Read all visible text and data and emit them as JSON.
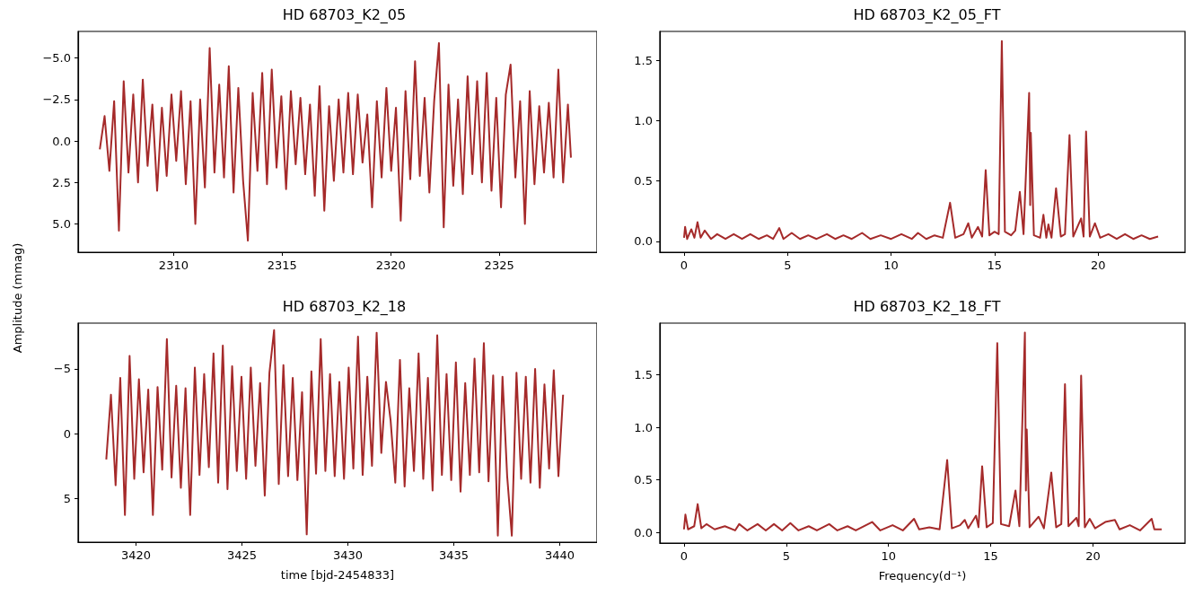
{
  "chart_data": [
    {
      "type": "line",
      "title": "HD 68703_K2_05",
      "ylabel": "Amplitude (mmag)",
      "marker": "none",
      "line_style": "solid",
      "xlim": [
        2305.6,
        2329.5
      ],
      "xticks": [
        2310,
        2315,
        2320,
        2325
      ],
      "ylim": [
        6.7,
        -6.6
      ],
      "yticks": [
        {
          "value": -5,
          "label": "−5.0"
        },
        {
          "value": -2.5,
          "label": "−2.5"
        },
        {
          "value": 0,
          "label": "0.0"
        },
        {
          "value": 2.5,
          "label": "2.5"
        },
        {
          "value": 5,
          "label": "5.0"
        }
      ],
      "series": [
        {
          "color": "#a52a2a",
          "x": [
            2306.6,
            2306.82,
            2307.04,
            2307.26,
            2307.48,
            2307.7,
            2307.92,
            2308.14,
            2308.36,
            2308.58,
            2308.8,
            2309.02,
            2309.24,
            2309.46,
            2309.68,
            2309.9,
            2310.12,
            2310.34,
            2310.56,
            2310.78,
            2311,
            2311.22,
            2311.44,
            2311.66,
            2311.88,
            2312.1,
            2312.32,
            2312.54,
            2312.76,
            2312.98,
            2313.2,
            2313.42,
            2313.64,
            2313.86,
            2314.08,
            2314.3,
            2314.52,
            2314.74,
            2314.96,
            2315.18,
            2315.4,
            2315.62,
            2315.84,
            2316.06,
            2316.28,
            2316.5,
            2316.72,
            2316.94,
            2317.16,
            2317.38,
            2317.6,
            2317.82,
            2318.04,
            2318.26,
            2318.48,
            2318.7,
            2318.92,
            2319.14,
            2319.36,
            2319.58,
            2319.8,
            2320.02,
            2320.24,
            2320.46,
            2320.68,
            2320.9,
            2321.12,
            2321.34,
            2321.56,
            2321.78,
            2322,
            2322.22,
            2322.44,
            2322.66,
            2322.88,
            2323.1,
            2323.32,
            2323.54,
            2323.76,
            2323.98,
            2324.2,
            2324.42,
            2324.64,
            2324.86,
            2325.08,
            2325.3,
            2325.52,
            2325.74,
            2325.96,
            2326.18,
            2326.4,
            2326.62,
            2326.84,
            2327.06,
            2327.28,
            2327.5,
            2327.72,
            2327.94,
            2328.16,
            2328.3
          ],
          "values": [
            0.5,
            -1.5,
            1.8,
            -2.4,
            5.4,
            -3.6,
            1.9,
            -2.8,
            2.5,
            -3.7,
            1.5,
            -2.2,
            3.0,
            -2.0,
            2.1,
            -2.8,
            1.2,
            -3.0,
            2.6,
            -2.4,
            5.0,
            -2.5,
            2.8,
            -5.6,
            1.9,
            -3.4,
            2.2,
            -4.5,
            3.1,
            -3.2,
            2.4,
            6.0,
            -2.9,
            1.8,
            -4.1,
            2.6,
            -4.3,
            1.6,
            -2.7,
            2.9,
            -3.0,
            1.4,
            -2.6,
            2.0,
            -2.2,
            3.3,
            -3.3,
            4.2,
            -2.1,
            2.4,
            -2.5,
            1.9,
            -2.9,
            2.0,
            -2.8,
            1.3,
            -1.6,
            4.0,
            -2.4,
            2.2,
            -3.2,
            1.8,
            -2.0,
            4.8,
            -3.0,
            2.3,
            -4.8,
            2.1,
            -2.6,
            3.1,
            -2.4,
            -5.9,
            5.2,
            -3.4,
            2.7,
            -2.5,
            3.2,
            -3.9,
            2.0,
            -3.6,
            2.5,
            -4.1,
            3.0,
            -2.6,
            4.0,
            -2.8,
            -4.6,
            2.2,
            -2.4,
            5.0,
            -3.0,
            2.6,
            -2.1,
            1.9,
            -2.3,
            2.2,
            -4.3,
            2.5,
            -2.2,
            1.0
          ]
        }
      ]
    },
    {
      "type": "line",
      "title": "HD 68703_K2_05_FT",
      "marker": "none",
      "line_style": "solid",
      "xlim": [
        -1.17,
        24.2
      ],
      "xticks": [
        0,
        5,
        10,
        15,
        20
      ],
      "ylim": [
        -0.09,
        1.74
      ],
      "yticks": [
        {
          "value": 0,
          "label": "0.0"
        },
        {
          "value": 0.5,
          "label": "0.5"
        },
        {
          "value": 1,
          "label": "1.0"
        },
        {
          "value": 1.5,
          "label": "1.5"
        }
      ],
      "series": [
        {
          "color": "#a52a2a",
          "x": [
            0,
            0.05,
            0.15,
            0.35,
            0.5,
            0.65,
            0.8,
            1.0,
            1.3,
            1.6,
            2.0,
            2.4,
            2.8,
            3.2,
            3.6,
            4.0,
            4.3,
            4.6,
            4.8,
            5.2,
            5.6,
            6.0,
            6.4,
            6.9,
            7.3,
            7.7,
            8.1,
            8.6,
            9.0,
            9.5,
            10.0,
            10.5,
            11.0,
            11.3,
            11.7,
            12.1,
            12.5,
            12.85,
            13.1,
            13.5,
            13.73,
            13.9,
            14.2,
            14.4,
            14.57,
            14.75,
            15.0,
            15.2,
            15.35,
            15.5,
            15.8,
            16.0,
            16.22,
            16.4,
            16.67,
            16.72,
            16.75,
            16.9,
            17.2,
            17.36,
            17.5,
            17.6,
            17.75,
            17.97,
            18.2,
            18.4,
            18.62,
            18.8,
            19.18,
            19.3,
            19.42,
            19.6,
            19.85,
            20.1,
            20.5,
            20.9,
            21.3,
            21.7,
            22.1,
            22.5,
            22.9
          ],
          "values": [
            0.03,
            0.12,
            0.02,
            0.1,
            0.03,
            0.16,
            0.03,
            0.09,
            0.02,
            0.06,
            0.02,
            0.06,
            0.02,
            0.06,
            0.02,
            0.05,
            0.02,
            0.11,
            0.02,
            0.07,
            0.02,
            0.05,
            0.02,
            0.06,
            0.02,
            0.05,
            0.02,
            0.07,
            0.02,
            0.05,
            0.02,
            0.06,
            0.02,
            0.07,
            0.02,
            0.05,
            0.03,
            0.32,
            0.03,
            0.06,
            0.15,
            0.03,
            0.12,
            0.04,
            0.59,
            0.05,
            0.08,
            0.06,
            1.66,
            0.08,
            0.05,
            0.09,
            0.41,
            0.06,
            1.23,
            0.3,
            0.9,
            0.05,
            0.03,
            0.22,
            0.03,
            0.14,
            0.03,
            0.44,
            0.04,
            0.06,
            0.88,
            0.04,
            0.19,
            0.04,
            0.91,
            0.04,
            0.15,
            0.03,
            0.06,
            0.02,
            0.06,
            0.02,
            0.05,
            0.02,
            0.04
          ]
        }
      ]
    },
    {
      "type": "line",
      "title": "HD 68703_K2_18",
      "xlabel": "time [bjd-2454833]",
      "marker": "none",
      "line_style": "solid",
      "xlim": [
        3417.27,
        3441.76
      ],
      "xticks": [
        3420,
        3425,
        3430,
        3435,
        3440
      ],
      "ylim": [
        8.4,
        -8.54
      ],
      "yticks": [
        {
          "value": -5,
          "label": "−5"
        },
        0,
        5
      ],
      "series": [
        {
          "color": "#a52a2a",
          "x": [
            3418.6,
            3418.82,
            3419.04,
            3419.26,
            3419.48,
            3419.7,
            3419.92,
            3420.14,
            3420.36,
            3420.58,
            3420.8,
            3421.02,
            3421.24,
            3421.46,
            3421.68,
            3421.9,
            3422.12,
            3422.34,
            3422.56,
            3422.78,
            3423,
            3423.22,
            3423.44,
            3423.66,
            3423.88,
            3424.1,
            3424.32,
            3424.54,
            3424.76,
            3424.98,
            3425.2,
            3425.42,
            3425.64,
            3425.86,
            3426.08,
            3426.3,
            3426.52,
            3426.74,
            3426.96,
            3427.18,
            3427.4,
            3427.62,
            3427.84,
            3428.06,
            3428.28,
            3428.5,
            3428.72,
            3428.94,
            3429.16,
            3429.38,
            3429.6,
            3429.82,
            3430.04,
            3430.26,
            3430.48,
            3430.7,
            3430.92,
            3431.14,
            3431.36,
            3431.58,
            3431.8,
            3432.02,
            3432.24,
            3432.46,
            3432.68,
            3432.9,
            3433.12,
            3433.34,
            3433.56,
            3433.78,
            3434,
            3434.22,
            3434.44,
            3434.66,
            3434.88,
            3435.1,
            3435.32,
            3435.54,
            3435.76,
            3435.98,
            3436.2,
            3436.42,
            3436.64,
            3436.86,
            3437.08,
            3437.3,
            3437.52,
            3437.74,
            3437.96,
            3438.18,
            3438.4,
            3438.62,
            3438.84,
            3439.06,
            3439.28,
            3439.5,
            3439.72,
            3439.94,
            3440.16
          ],
          "values": [
            2.0,
            -3.0,
            4.0,
            -4.3,
            6.3,
            -6.0,
            3.5,
            -4.2,
            3.0,
            -3.4,
            6.3,
            -3.6,
            2.8,
            -7.3,
            3.4,
            -3.7,
            4.2,
            -3.5,
            6.3,
            -5.1,
            3.2,
            -4.6,
            2.6,
            -6.2,
            3.8,
            -6.8,
            4.3,
            -5.2,
            2.9,
            -4.4,
            3.5,
            -5.1,
            2.5,
            -3.9,
            4.8,
            -4.7,
            -8.0,
            3.9,
            -5.3,
            3.3,
            -4.3,
            3.6,
            -3.2,
            7.8,
            -4.8,
            3.1,
            -7.3,
            2.9,
            -4.6,
            3.3,
            -4.0,
            3.5,
            -5.1,
            2.7,
            -7.5,
            3.2,
            -4.4,
            2.5,
            -7.8,
            1.5,
            -4.0,
            -1.0,
            3.8,
            -5.7,
            4.1,
            -3.5,
            2.9,
            -6.2,
            3.5,
            -4.3,
            4.4,
            -7.6,
            3.2,
            -4.6,
            3.6,
            -5.5,
            4.5,
            -3.9,
            3.2,
            -5.8,
            3.0,
            -7.0,
            3.7,
            -4.5,
            7.9,
            -4.4,
            3.3,
            7.9,
            -4.7,
            3.5,
            -4.4,
            3.8,
            -5.0,
            4.2,
            -3.8,
            2.7,
            -4.9,
            3.3,
            -3.0
          ]
        }
      ]
    },
    {
      "type": "line",
      "title": "HD 68703_K2_18_FT",
      "xlabel": "Frequency(d⁻¹)",
      "marker": "none",
      "line_style": "solid",
      "xlim": [
        -1.18,
        24.5
      ],
      "xticks": [
        0,
        5,
        10,
        15,
        20
      ],
      "ylim": [
        -0.1,
        1.99
      ],
      "yticks": [
        {
          "value": 0,
          "label": "0.0"
        },
        {
          "value": 0.5,
          "label": "0.5"
        },
        {
          "value": 1,
          "label": "1.0"
        },
        {
          "value": 1.5,
          "label": "1.5"
        }
      ],
      "series": [
        {
          "color": "#a52a2a",
          "x": [
            0,
            0.07,
            0.2,
            0.5,
            0.67,
            0.85,
            1.1,
            1.5,
            2.0,
            2.5,
            2.7,
            3.1,
            3.6,
            4.0,
            4.4,
            4.8,
            5.2,
            5.6,
            6.1,
            6.5,
            7.1,
            7.5,
            8.0,
            8.4,
            9.2,
            9.6,
            10.2,
            10.7,
            11.25,
            11.5,
            12.0,
            12.5,
            12.87,
            13.1,
            13.5,
            13.73,
            13.9,
            14.28,
            14.4,
            14.58,
            14.8,
            15.1,
            15.32,
            15.5,
            15.9,
            16.21,
            16.4,
            16.67,
            16.72,
            16.76,
            16.9,
            17.34,
            17.6,
            17.96,
            18.2,
            18.45,
            18.63,
            18.8,
            19.19,
            19.3,
            19.42,
            19.6,
            19.84,
            20.1,
            20.6,
            21.07,
            21.3,
            21.8,
            22.3,
            22.87,
            23.0,
            23.36
          ],
          "values": [
            0.03,
            0.17,
            0.03,
            0.06,
            0.27,
            0.04,
            0.08,
            0.03,
            0.06,
            0.02,
            0.08,
            0.02,
            0.08,
            0.02,
            0.08,
            0.02,
            0.09,
            0.02,
            0.06,
            0.02,
            0.08,
            0.02,
            0.06,
            0.02,
            0.1,
            0.02,
            0.07,
            0.02,
            0.13,
            0.03,
            0.05,
            0.03,
            0.69,
            0.04,
            0.07,
            0.12,
            0.04,
            0.16,
            0.05,
            0.63,
            0.05,
            0.09,
            1.8,
            0.08,
            0.06,
            0.4,
            0.06,
            1.9,
            0.4,
            0.98,
            0.05,
            0.15,
            0.04,
            0.57,
            0.05,
            0.08,
            1.41,
            0.06,
            0.14,
            0.06,
            1.49,
            0.05,
            0.13,
            0.04,
            0.1,
            0.12,
            0.03,
            0.07,
            0.02,
            0.13,
            0.03,
            0.03
          ]
        }
      ]
    }
  ]
}
